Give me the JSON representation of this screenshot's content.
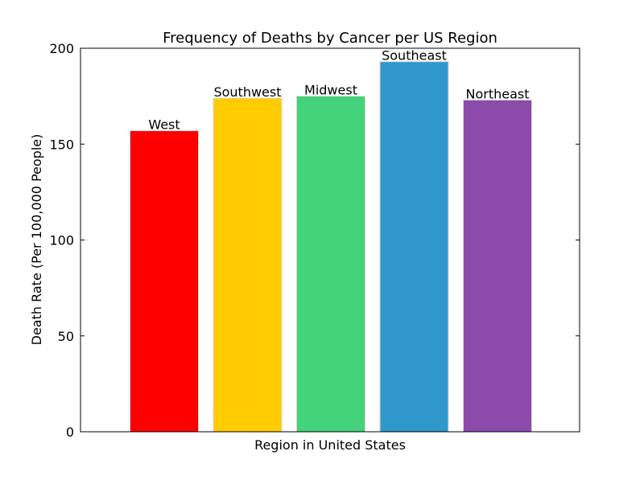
{
  "chart_data": {
    "type": "bar",
    "title": "Frequency of Deaths by Cancer per US Region",
    "xlabel": "Region in United States",
    "ylabel": "Death Rate (Per 100,000 People)",
    "categories": [
      "West",
      "Southwest",
      "Midwest",
      "Southeast",
      "Northeast"
    ],
    "values": [
      157,
      174,
      175,
      193,
      173
    ],
    "colors": [
      "#ff0000",
      "#ffcc00",
      "#44d27a",
      "#2e98cc",
      "#8c4aab"
    ],
    "ylim": [
      0,
      200
    ],
    "yticks": [
      0,
      50,
      100,
      150,
      200
    ],
    "grid": false,
    "legend": "none"
  }
}
